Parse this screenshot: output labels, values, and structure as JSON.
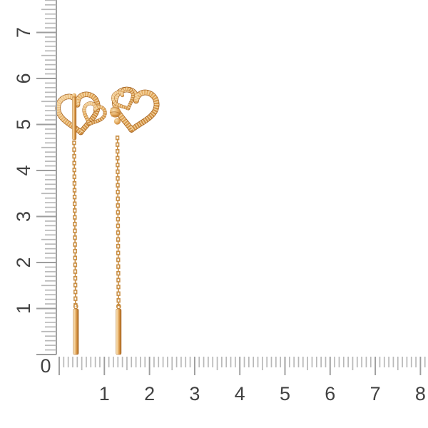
{
  "corner_label": "0",
  "vertical_ruler": {
    "labels": [
      "1",
      "2",
      "3",
      "4",
      "5",
      "6",
      "7"
    ]
  },
  "horizontal_ruler": {
    "labels": [
      "1",
      "2",
      "3",
      "4",
      "5",
      "6",
      "7",
      "8"
    ]
  },
  "earrings": {
    "count": 2,
    "parts": [
      "heart-motif",
      "small-heart-motif",
      "cable-chain",
      "drop-bar"
    ]
  },
  "colors": {
    "background": "#ffffff",
    "tick": "#b8b8b8",
    "tick_major": "#9e9e9e",
    "ruler_line": "#9c9c9c",
    "number": "#424242",
    "gold_light": "#f7deb0",
    "gold_hi": "#f3cf9a",
    "gold_mid": "#e0a355",
    "gold_deep": "#c17c2f",
    "gold_shadow": "#a05e1c",
    "chain": "#c98f45"
  }
}
